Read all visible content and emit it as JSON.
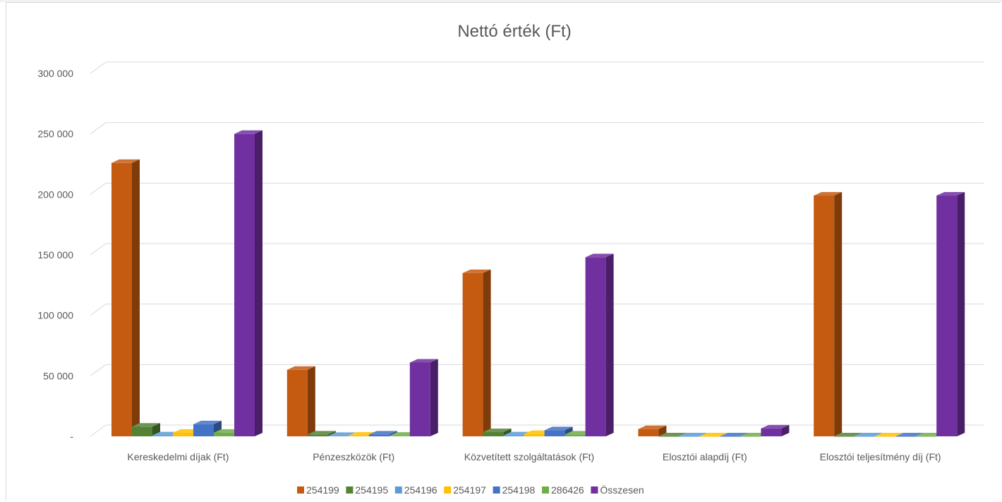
{
  "chart_data": {
    "type": "bar",
    "title": "Nettó érték (Ft)",
    "categories": [
      "Kereskedelmi díjak (Ft)",
      "Pénzeszközök (Ft)",
      "Közvetített szolgáltatások (Ft)",
      "Elosztói alapdíj (Ft)",
      "Elosztói teljesítmény díj (Ft)"
    ],
    "ylim": [
      0,
      300000
    ],
    "yticks": [
      {
        "value": 0,
        "label": "-"
      },
      {
        "value": 50000,
        "label": "50 000"
      },
      {
        "value": 100000,
        "label": "100 000"
      },
      {
        "value": 150000,
        "label": "150 000"
      },
      {
        "value": 200000,
        "label": "200 000"
      },
      {
        "value": 250000,
        "label": "250 000"
      },
      {
        "value": 300000,
        "label": "300 000"
      }
    ],
    "grid": true,
    "legend_position": "bottom",
    "series": [
      {
        "name": "254199",
        "color": "#c55a11",
        "values": [
          226000,
          55000,
          135000,
          6000,
          199000
        ]
      },
      {
        "name": "254195",
        "color": "#548235",
        "values": [
          8000,
          1500,
          3500,
          0,
          0
        ]
      },
      {
        "name": "254196",
        "color": "#5b9bd5",
        "values": [
          800,
          400,
          800,
          0,
          0
        ]
      },
      {
        "name": "254197",
        "color": "#ffc000",
        "values": [
          3000,
          600,
          2000,
          0,
          0
        ]
      },
      {
        "name": "254198",
        "color": "#4472c4",
        "values": [
          10000,
          1500,
          5000,
          0,
          0
        ]
      },
      {
        "name": "286426",
        "color": "#70ad47",
        "values": [
          3000,
          500,
          1500,
          0,
          0
        ]
      },
      {
        "name": "Összesen",
        "color": "#7030a0",
        "values": [
          250000,
          61000,
          148000,
          6500,
          199000
        ]
      }
    ]
  }
}
